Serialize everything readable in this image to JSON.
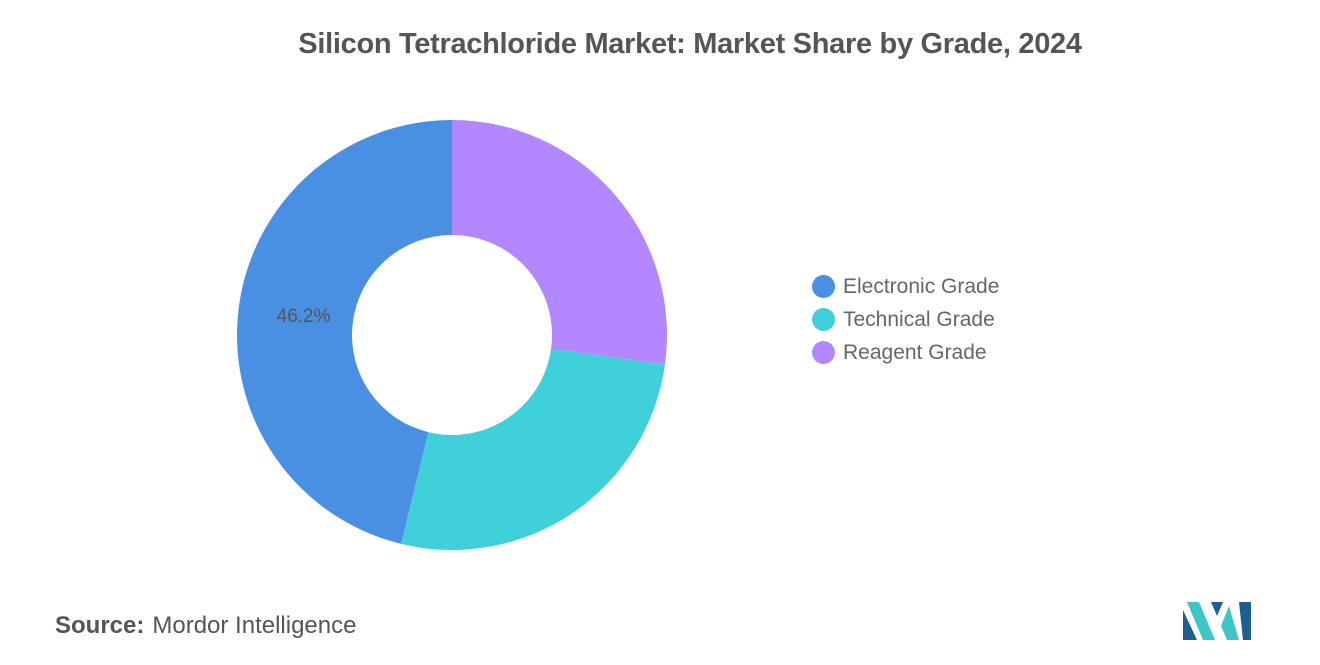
{
  "chart_data": {
    "type": "donut",
    "title": "Silicon Tetrachloride Market: Market Share by Grade, 2024",
    "series": [
      {
        "name": "Electronic Grade",
        "value": 46.2,
        "color": "#4a90e2",
        "label": "46.2%"
      },
      {
        "name": "Technical Grade",
        "value": 26.6,
        "color": "#40d0da"
      },
      {
        "name": "Reagent Grade",
        "value": 27.2,
        "color": "#b388ff"
      }
    ],
    "legend_position": "right",
    "label_color": "#555555"
  },
  "source": {
    "label": "Source:",
    "text": "Mordor Intelligence"
  },
  "logo": {
    "icon": "mordor-intelligence-logo",
    "colors": [
      "#1f5f8f",
      "#3ec6c6"
    ]
  }
}
